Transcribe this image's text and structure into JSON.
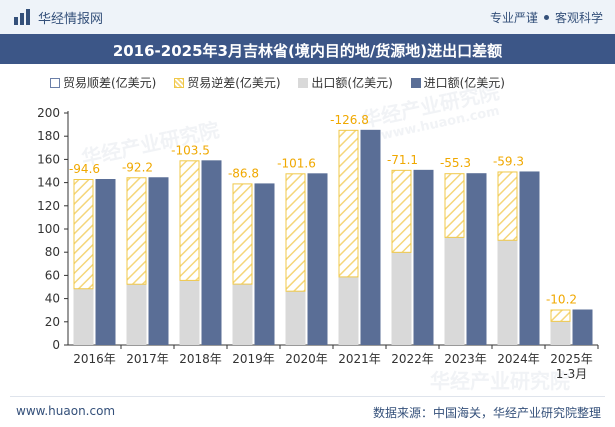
{
  "header": {
    "brand": "华经情报网",
    "tag1": "专业严谨",
    "tag2": "客观科学"
  },
  "footer": {
    "website": "www.huaon.com",
    "source": "数据来源：中国海关，华经产业研究院整理"
  },
  "watermarks": [
    "华经产业研究院",
    "www.huaon.com"
  ],
  "colors": {
    "import": "#5a6e96",
    "export": "#d9d9d9",
    "deficit_hatch": "#f5d67a",
    "title_bar": "#3c5687",
    "label": "#f0a800"
  },
  "chart_data": {
    "type": "bar",
    "title": "2016-2025年3月吉林省(境内目的地/货源地)进出口差额",
    "legend_position": "top",
    "legend": [
      "贸易顺差(亿美元)",
      "贸易逆差(亿美元)",
      "出口额(亿美元)",
      "进口额(亿美元)"
    ],
    "categories": [
      "2016年",
      "2017年",
      "2018年",
      "2019年",
      "2020年",
      "2021年",
      "2022年",
      "2023年",
      "2024年",
      "2025年"
    ],
    "category_sublabels": [
      "",
      "",
      "",
      "",
      "",
      "",
      "",
      "",
      "",
      "1-3月"
    ],
    "ylim": [
      0,
      200
    ],
    "yticks": [
      0,
      20,
      40,
      60,
      80,
      100,
      120,
      140,
      160,
      180,
      200
    ],
    "grid": false,
    "series": [
      {
        "name": "出口额(亿美元)",
        "values": [
          48.5,
          52.4,
          55.7,
          52.5,
          46.4,
          58.7,
          79.9,
          92.8,
          90.3,
          20.4
        ]
      },
      {
        "name": "进口额(亿美元)",
        "values": [
          143.1,
          144.6,
          159.2,
          139.3,
          148.0,
          185.5,
          151.0,
          148.1,
          149.6,
          30.6
        ]
      },
      {
        "name": "贸易逆差(亿美元)",
        "values": [
          -94.6,
          -92.2,
          -103.5,
          -86.8,
          -101.6,
          -126.8,
          -71.1,
          -55.3,
          -59.3,
          -10.2
        ]
      }
    ],
    "data_labels": [
      "-94.6",
      "-92.2",
      "-103.5",
      "-86.8",
      "-101.6",
      "-126.8",
      "-71.1",
      "-55.3",
      "-59.3",
      "-10.2"
    ]
  }
}
